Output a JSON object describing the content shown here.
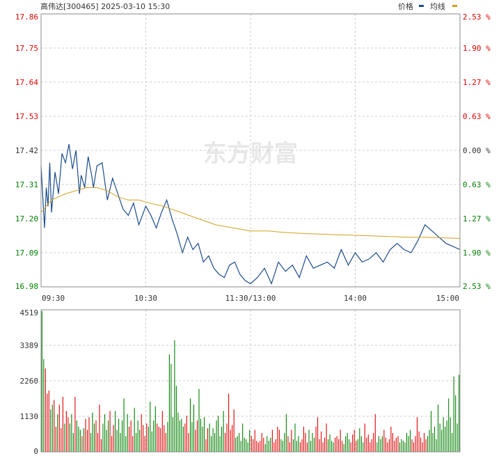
{
  "header": {
    "title": "高伟达[300465] 2025-03-10 15:30",
    "legend_price": "价格",
    "legend_avg": "均线"
  },
  "watermark": "东方财富",
  "colors": {
    "up": "#e00000",
    "down": "#008000",
    "price_line": "#1a4b8c",
    "avg_line": "#d4a020",
    "grid": "#cccccc",
    "axis": "#555555"
  },
  "chart_data": [
    {
      "type": "line",
      "title": "高伟达[300465] 2025-03-10 15:30",
      "price_ticks": [
        "17.86",
        "17.75",
        "17.64",
        "17.53",
        "17.42",
        "17.31",
        "17.20",
        "17.09",
        "16.98"
      ],
      "pct_ticks": [
        "2.53 %",
        "1.90 %",
        "1.27 %",
        "0.63 %",
        "0.00 %",
        "0.63 %",
        "1.27 %",
        "1.90 %",
        "2.53 %"
      ],
      "time_ticks": [
        "09:30",
        "10:30",
        "11:30/13:00",
        "14:00",
        "15:00"
      ],
      "ylim": [
        16.98,
        17.86
      ],
      "prev_close": 17.42,
      "grid": true,
      "series": [
        {
          "name": "价格",
          "x": [
            0,
            2,
            3,
            4,
            5,
            6,
            8,
            10,
            12,
            14,
            16,
            18,
            20,
            22,
            23,
            25,
            27,
            29,
            30,
            32,
            35,
            38,
            41,
            44,
            47,
            50,
            53,
            56,
            60,
            63,
            66,
            69,
            72,
            75,
            78,
            81,
            84,
            87,
            90,
            93,
            96,
            99,
            102,
            105,
            108,
            111,
            114,
            117,
            120,
            124,
            128,
            132,
            136,
            140,
            144,
            148,
            152,
            156,
            160,
            164,
            168,
            172,
            176,
            180,
            184,
            188,
            192,
            196,
            200,
            204,
            208,
            212,
            216,
            220,
            224,
            228,
            232,
            236,
            240
          ],
          "y": [
            17.37,
            17.17,
            17.3,
            17.24,
            17.38,
            17.22,
            17.35,
            17.28,
            17.41,
            17.38,
            17.44,
            17.36,
            17.42,
            17.28,
            17.34,
            17.3,
            17.4,
            17.34,
            17.3,
            17.37,
            17.38,
            17.26,
            17.33,
            17.28,
            17.23,
            17.21,
            17.25,
            17.18,
            17.24,
            17.21,
            17.17,
            17.22,
            17.26,
            17.2,
            17.15,
            17.09,
            17.14,
            17.1,
            17.12,
            17.06,
            17.08,
            17.04,
            17.02,
            17.01,
            17.05,
            17.06,
            17.02,
            17.0,
            16.99,
            17.01,
            17.04,
            16.99,
            17.06,
            17.03,
            17.05,
            17.01,
            17.08,
            17.04,
            17.05,
            17.06,
            17.04,
            17.1,
            17.05,
            17.09,
            17.06,
            17.07,
            17.09,
            17.06,
            17.1,
            17.12,
            17.1,
            17.09,
            17.13,
            17.18,
            17.16,
            17.14,
            17.12,
            17.11,
            17.1
          ]
        },
        {
          "name": "均线",
          "x": [
            0,
            3,
            6,
            10,
            14,
            20,
            26,
            32,
            38,
            44,
            50,
            56,
            62,
            70,
            80,
            90,
            100,
            110,
            120,
            130,
            140,
            150,
            160,
            170,
            180,
            190,
            200,
            210,
            220,
            230,
            240
          ],
          "y": [
            17.22,
            17.24,
            17.26,
            17.27,
            17.28,
            17.29,
            17.3,
            17.3,
            17.29,
            17.27,
            17.26,
            17.26,
            17.25,
            17.24,
            17.22,
            17.2,
            17.18,
            17.17,
            17.16,
            17.16,
            17.155,
            17.152,
            17.15,
            17.148,
            17.146,
            17.144,
            17.142,
            17.14,
            17.14,
            17.138,
            17.136
          ]
        }
      ]
    },
    {
      "type": "bar",
      "title": "",
      "volume_ticks": [
        "4519",
        "3389",
        "2260",
        "1130",
        "0"
      ],
      "ylim": [
        0,
        4519
      ],
      "grid": true,
      "volumes": [
        4480,
        2950,
        2650,
        1850,
        1950,
        1350,
        1500,
        1650,
        800,
        1200,
        1500,
        750,
        1750,
        900,
        1300,
        1100,
        900,
        1200,
        600,
        1750,
        1000,
        800,
        700,
        500,
        750,
        1050,
        700,
        1100,
        600,
        1250,
        900,
        1000,
        600,
        1500,
        400,
        900,
        1200,
        700,
        1000,
        1300,
        500,
        850,
        1300,
        700,
        1050,
        600,
        1000,
        1700,
        500,
        1200,
        800,
        1000,
        500,
        1400,
        600,
        1000,
        700,
        1200,
        850,
        500,
        900,
        800,
        1600,
        650,
        1000,
        1450,
        900,
        800,
        750,
        1300,
        850,
        600,
        950,
        3100,
        2800,
        1100,
        3550,
        2100,
        1250,
        1000,
        1050,
        800,
        900,
        1150,
        600,
        1700,
        950,
        1500,
        700,
        1000,
        2000,
        1050,
        800,
        1100,
        400,
        750,
        900,
        500,
        750,
        600,
        1000,
        1150,
        500,
        800,
        1300,
        600,
        900,
        1850,
        700,
        850,
        1350,
        450,
        500,
        600,
        350,
        900,
        450,
        400,
        300,
        700,
        500,
        400,
        700,
        350,
        300,
        350,
        600,
        450,
        250,
        500,
        350,
        450,
        700,
        300,
        400,
        800,
        700,
        400,
        350,
        600,
        1200,
        500,
        300,
        700,
        400,
        900,
        350,
        500,
        300,
        400,
        800,
        600,
        300,
        700,
        350,
        600,
        450,
        800,
        1100,
        400,
        650,
        300,
        450,
        900,
        400,
        550,
        350,
        300,
        450,
        500,
        400,
        700,
        350,
        250,
        500,
        600,
        400,
        300,
        550,
        700,
        350,
        400,
        750,
        500,
        300,
        900,
        450,
        550,
        300,
        400,
        600,
        1200,
        300,
        500,
        400,
        500,
        700,
        450,
        300,
        400,
        800,
        600,
        350,
        450,
        500,
        300,
        400,
        350,
        300,
        600,
        500,
        700,
        400,
        300,
        500,
        1100,
        650,
        450,
        300,
        600,
        400,
        500,
        700,
        1300,
        600,
        800,
        400,
        1500,
        900,
        700,
        1100,
        800,
        1000,
        1700,
        1100,
        600,
        2400,
        1800,
        900,
        2450
      ]
    }
  ]
}
